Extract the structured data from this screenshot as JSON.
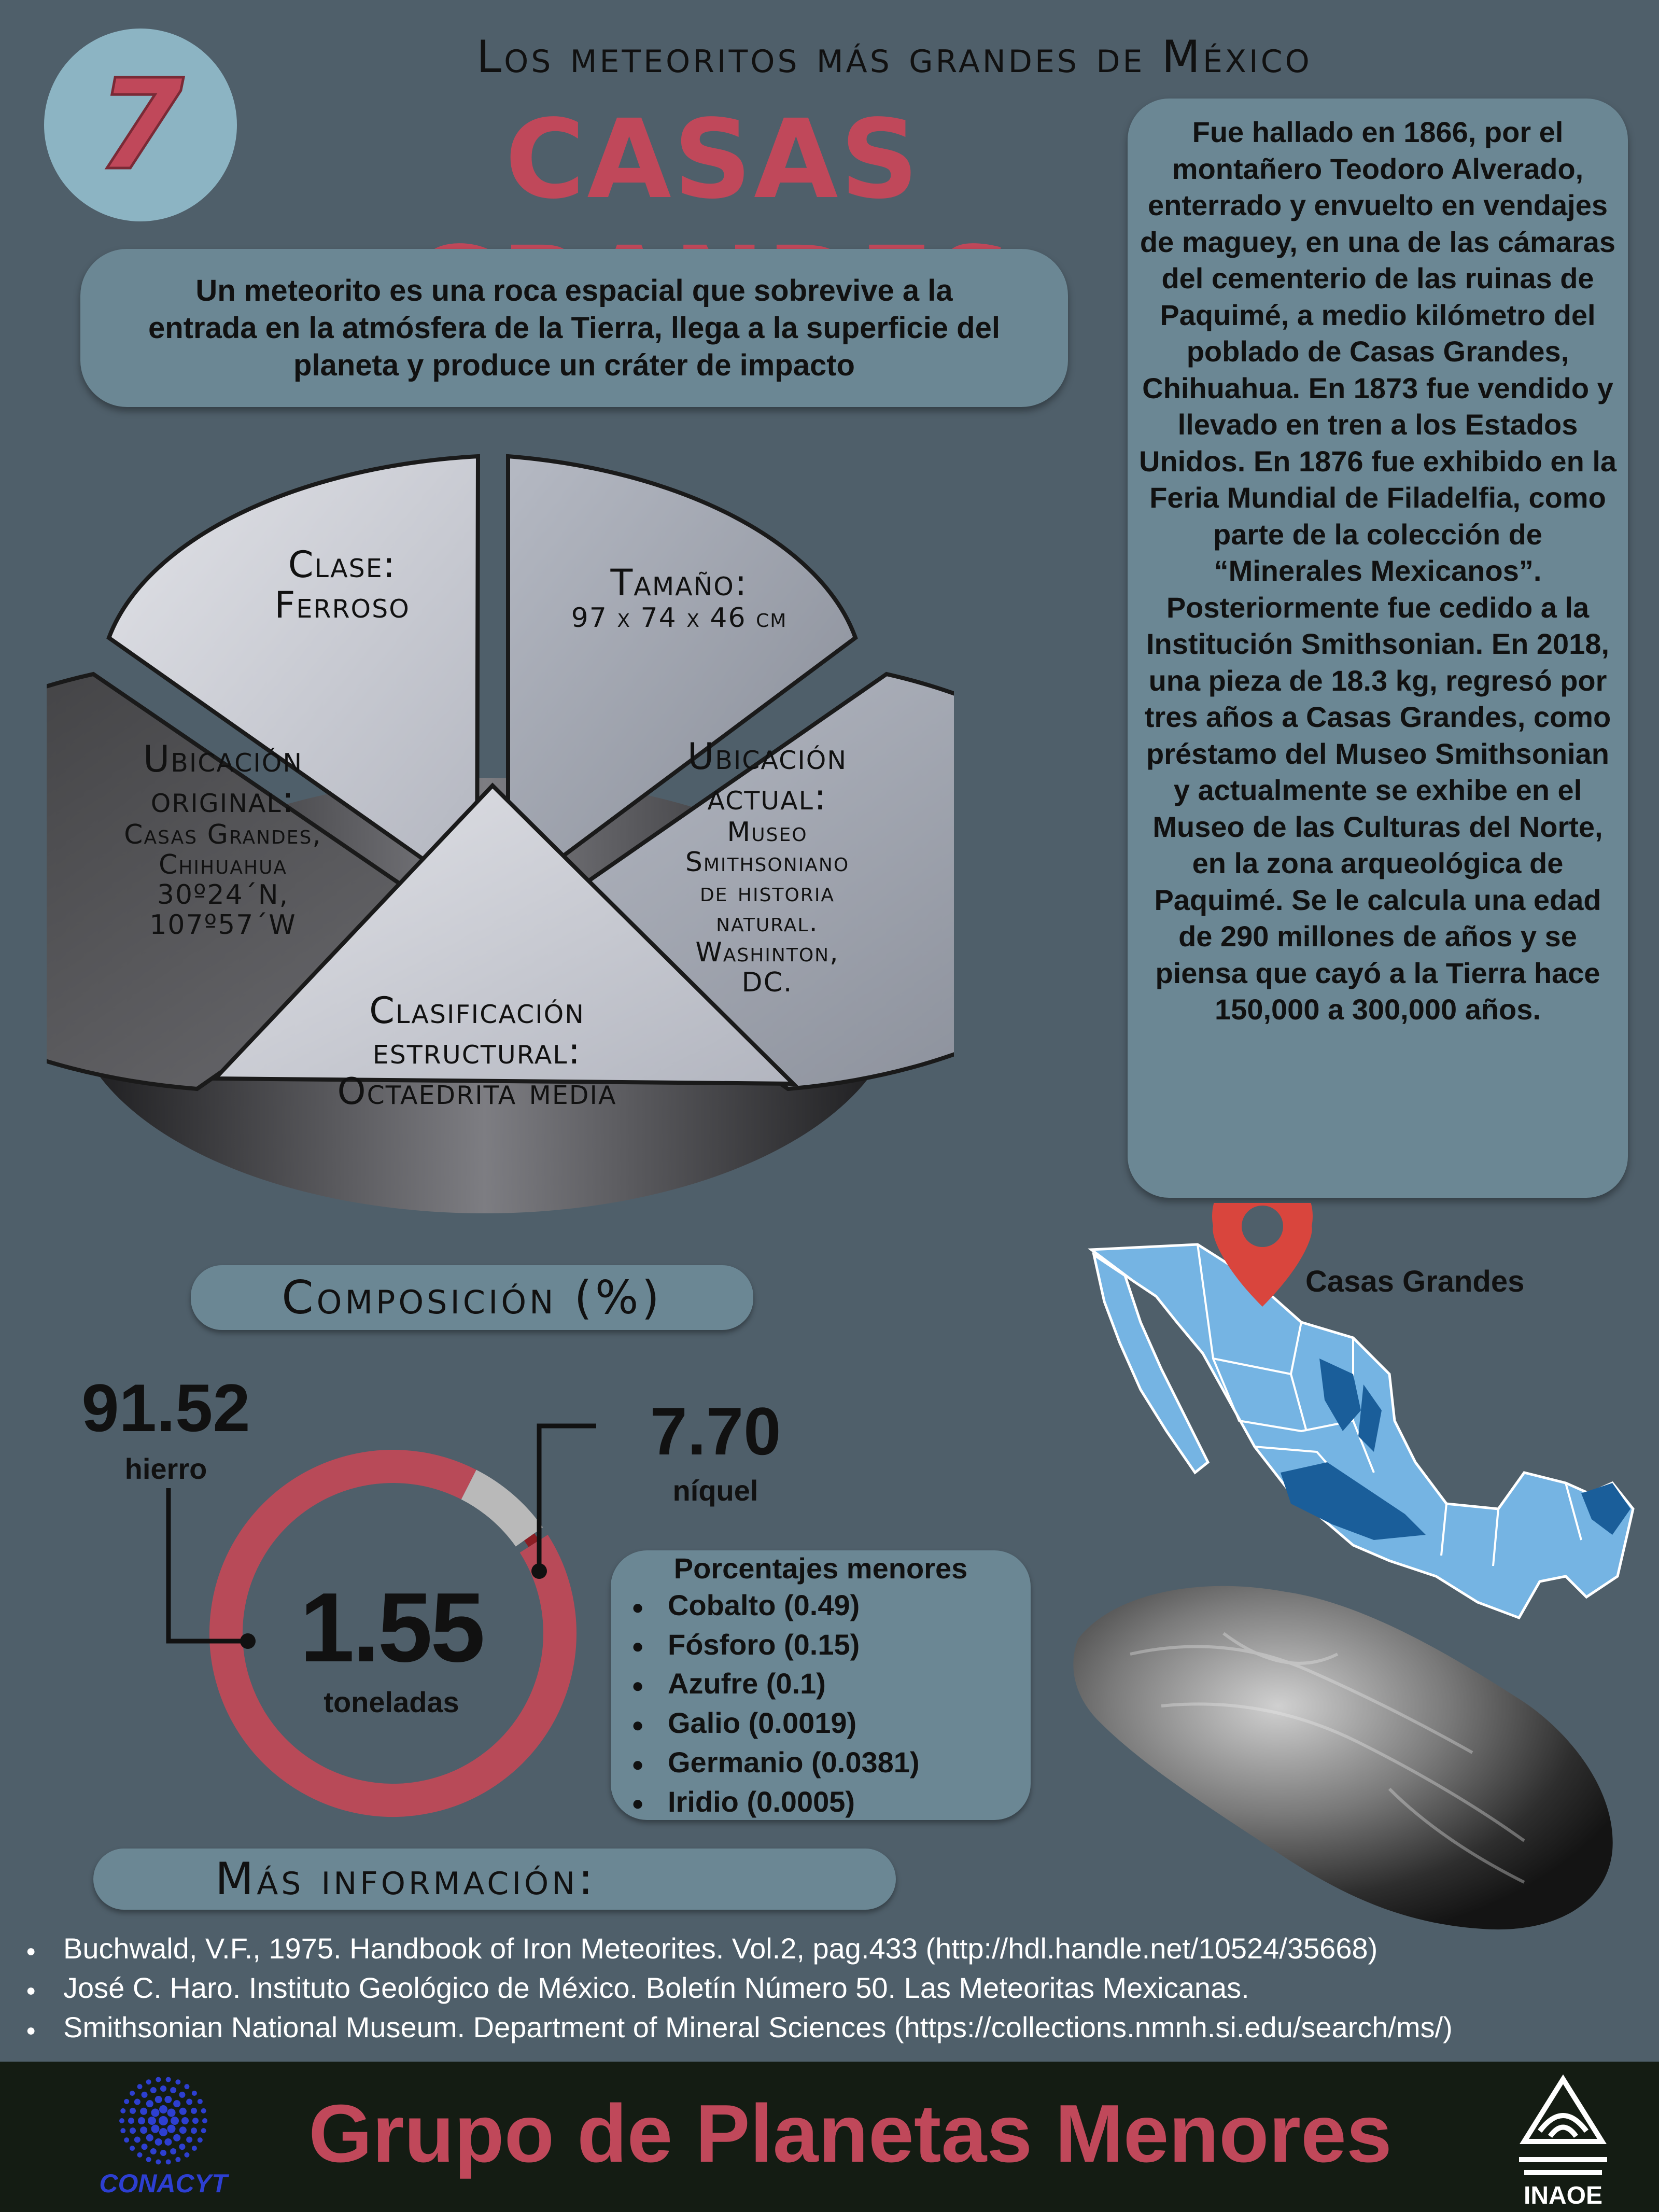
{
  "header": {
    "number": "7",
    "subtitle": "Los meteoritos más grandes de México",
    "title": "CASAS GRANDES"
  },
  "intro": {
    "text": "Un meteorito es una roca espacial que sobrevive a la entrada en la atmósfera de la Tierra, llega a la superficie del planeta y produce un cráter de impacto"
  },
  "history": {
    "text": "Fue hallado en 1866, por el montañero Teodoro Alverado, enterrado y envuelto en vendajes de maguey, en una de las cámaras del cementerio de  las ruinas de Paquimé, a medio kilómetro del poblado de Casas Grandes, Chihuahua. En 1873 fue vendido y llevado en tren a los Estados Unidos. En 1876 fue exhibido en la Feria Mundial de Filadelfia, como parte de la colección de “Minerales Mexicanos”. Posteriormente fue cedido a la Institución Smithsonian. En 2018, una pieza de 18.3 kg, regresó por tres años a Casas Grandes, como préstamo del Museo Smithsonian y actualmente se exhibe en el Museo de las Culturas del Norte, en la zona arqueológica de Paquimé. Se le calcula una edad de 290 millones de años y se piensa que cayó a la Tierra hace 150,000 a 300,000 años."
  },
  "pie": {
    "clase": {
      "heading": "Clase:",
      "value": "Ferroso"
    },
    "tamano": {
      "heading": "Tamaño:",
      "value": "97 x 74 x 46 cm"
    },
    "ubicacion_original": {
      "heading_1": "Ubicación",
      "heading_2": "original:",
      "line_1": "Casas Grandes,",
      "line_2": "Chihuahua",
      "line_3": "30º24´N,",
      "line_4": "107º57´W"
    },
    "ubicacion_actual": {
      "heading_1": "Ubicación",
      "heading_2": "actual:",
      "line_1": "Museo",
      "line_2": "Smithsoniano",
      "line_3": "de historia",
      "line_4": "natural.",
      "line_5": "Washinton,",
      "line_6": "DC."
    },
    "clasificacion": {
      "heading_1": "Clasificación",
      "heading_2": "estructural:",
      "value": "Octaedrita media"
    },
    "colors": {
      "light": "#c9ccd3",
      "dark": "#4d4d50",
      "mid": "#a7adb8",
      "side": "#2a2a2c"
    }
  },
  "composition": {
    "heading": "Composición (%)",
    "hierro_value": "91.52",
    "hierro_label": "hierro",
    "niquel_value": "7.70",
    "niquel_label": "níquel",
    "total_value": "1.55",
    "total_label": "toneladas",
    "shares": {
      "hierro": 91.52,
      "niquel": 7.7
    },
    "colors": {
      "hierro": "#b84a58",
      "niquel": "#b9b9b9",
      "resto": "#8b1e24"
    }
  },
  "minor": {
    "title": "Porcentajes menores",
    "items": [
      "Cobalto (0.49)",
      "Fósforo (0.15)",
      "Azufre (0.1)",
      "Galio (0.0019)",
      "Germanio (0.0381)",
      "Iridio (0.0005)"
    ]
  },
  "map": {
    "label": "Casas Grandes",
    "colors": {
      "state": "#75b4e3",
      "highlight": "#1a5e9a",
      "pin": "#d9453d"
    }
  },
  "more_info": {
    "heading": "Más información:",
    "refs": [
      "Buchwald, V.F., 1975. Handbook of Iron Meteorites. Vol.2, pag.433 (http://hdl.handle.net/10524/35668)",
      "José C. Haro. Instituto Geológico de México. Boletín Número 50. Las Meteoritas Mexicanas.",
      "Smithsonian National Museum. Department of Mineral Sciences (https://collections.nmnh.si.edu/search/ms/)"
    ]
  },
  "footer": {
    "title": "Grupo de Planetas Menores",
    "left_logo": "CONACYT",
    "right_logo": "INAOE"
  }
}
